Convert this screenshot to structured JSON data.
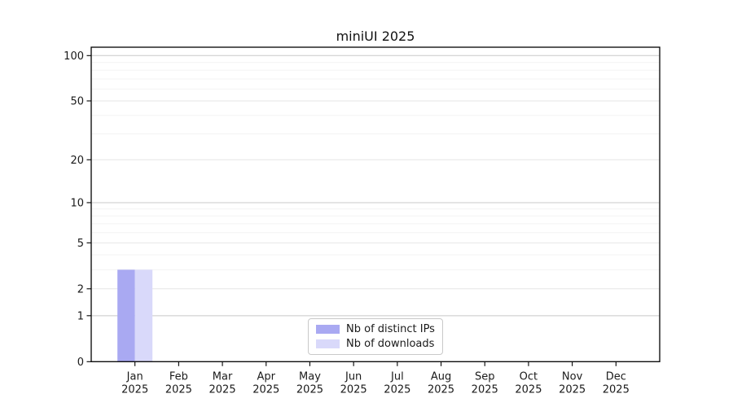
{
  "chart_data": {
    "type": "bar",
    "title": "miniUI 2025",
    "x_tick_year": "2025",
    "months": [
      "Jan",
      "Feb",
      "Mar",
      "Apr",
      "May",
      "Jun",
      "Jul",
      "Aug",
      "Sep",
      "Oct",
      "Nov",
      "Dec"
    ],
    "series": [
      {
        "name": "Nb of distinct IPs",
        "color": "#a9a9f2",
        "values": [
          3,
          0,
          0,
          0,
          0,
          0,
          0,
          0,
          0,
          0,
          0,
          0
        ]
      },
      {
        "name": "Nb of downloads",
        "color": "#d9d9fa",
        "values": [
          3,
          0,
          0,
          0,
          0,
          0,
          0,
          0,
          0,
          0,
          0,
          0
        ]
      }
    ],
    "y_scale": "log1p",
    "y_ticks": [
      0,
      1,
      2,
      5,
      10,
      20,
      50,
      100
    ],
    "y_minor_gridlines": [
      3,
      4,
      6,
      7,
      8,
      9,
      30,
      40,
      60,
      70,
      80,
      90
    ],
    "ylim": [
      0,
      114
    ],
    "grid": true,
    "legend_position": "lower center",
    "colors": {
      "major_grid": "#c8c8c8",
      "mid_grid": "#e6e6e6",
      "minor_grid": "#f3f3f3",
      "axis": "#000000",
      "text": "#1a1a1a"
    }
  }
}
